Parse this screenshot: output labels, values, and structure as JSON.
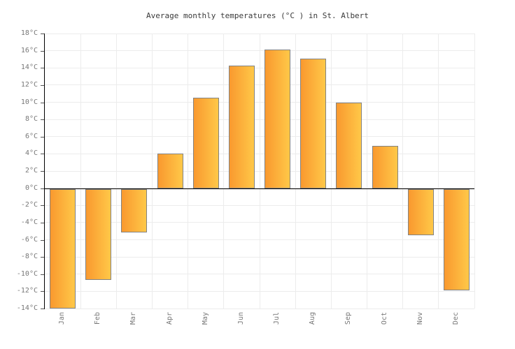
{
  "title": "Average monthly temperatures (°C ) in St. Albert",
  "chart_data": {
    "type": "bar",
    "title": "Average monthly temperatures (°C ) in St. Albert",
    "categories": [
      "Jan",
      "Feb",
      "Mar",
      "Apr",
      "May",
      "Jun",
      "Jul",
      "Aug",
      "Sep",
      "Oct",
      "Nov",
      "Dec"
    ],
    "values": [
      -13.9,
      -10.6,
      -5.1,
      4.0,
      10.5,
      14.3,
      16.1,
      15.1,
      10.0,
      4.9,
      -5.4,
      -11.8
    ],
    "xlabel": "",
    "ylabel": "",
    "ylim": [
      -14,
      18
    ],
    "ytick_step": 2,
    "ytick_suffix": "°C",
    "grid": true,
    "legend": false,
    "colors": {
      "bar_gradient_left": "#F9992F",
      "bar_gradient_right": "#FFC848",
      "bar_border": "#828282",
      "gridline": "#ECECEC",
      "axis_line": "#000000",
      "zero_line": "#000000",
      "tick_text": "#787878",
      "title_text": "#3A3A3A",
      "background": "#FFFFFF"
    }
  }
}
